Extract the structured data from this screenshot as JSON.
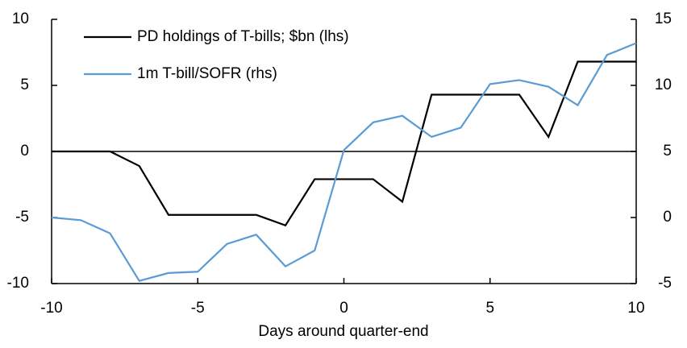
{
  "chart_data": {
    "type": "line",
    "x_label": "Days around quarter-end",
    "x": [
      -10,
      -9,
      -8,
      -7,
      -6,
      -5,
      -4,
      -3,
      -2,
      -1,
      0,
      1,
      2,
      3,
      4,
      5,
      6,
      7,
      8,
      9,
      10
    ],
    "series": [
      {
        "name": "PD holdings of T-bills; $bn (lhs)",
        "color": "#000000",
        "axis": "y",
        "values": [
          0,
          0,
          0,
          -1.1,
          -4.8,
          -4.8,
          -4.8,
          -4.8,
          -5.6,
          -2.1,
          -2.1,
          -2.1,
          -3.8,
          4.3,
          4.3,
          4.3,
          4.3,
          1.1,
          6.8,
          6.8,
          6.8
        ]
      },
      {
        "name": "1m T-bill/SOFR (rhs)",
        "color": "#5b9bd5",
        "axis": "y2",
        "values": [
          0,
          -0.2,
          -1.2,
          -4.8,
          -4.2,
          -4.1,
          -2.0,
          -1.3,
          -3.7,
          -2.5,
          5.1,
          7.2,
          7.7,
          6.1,
          6.8,
          10.1,
          10.4,
          9.9,
          8.5,
          12.3,
          13.2
        ]
      }
    ],
    "xlim": [
      -10,
      10
    ],
    "xticks": [
      -10,
      -5,
      0,
      5,
      10
    ],
    "ylim": [
      -10,
      10
    ],
    "yticks": [
      -10,
      -5,
      0,
      5,
      10
    ],
    "y2lim": [
      -5,
      15
    ],
    "y2ticks": [
      -5,
      0,
      5,
      10,
      15
    ],
    "legend": "upper left"
  }
}
